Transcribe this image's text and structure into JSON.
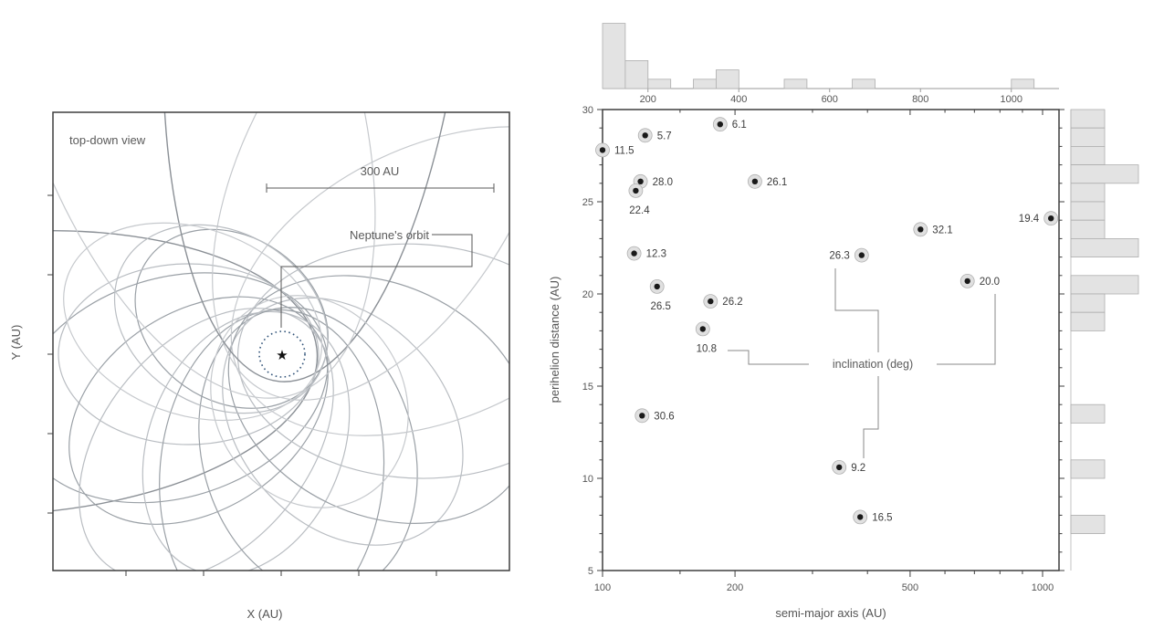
{
  "colors": {
    "frame": "#3f3f3f",
    "hist_fill": "#e3e3e3",
    "hist_stroke": "#adadad",
    "halo_fill": "#e0e0e0",
    "halo_stroke": "#b0b0b0",
    "dot": "#1a1a1a",
    "neptune_dash": "#33557a",
    "orbit_dark": "#8b9096",
    "orbit_mid": "#9aa0a6",
    "orbit_soft": "#b9bdc2",
    "orbit_light": "#c6c9cd"
  },
  "left_panel": {
    "title": "top-down view",
    "scale_bar_label": "300 AU",
    "scale_bar_au": 300,
    "neptune_annotation": "Neptune's orbit",
    "neptune_orbit_radius_au": 30,
    "xlabel": "X (AU)",
    "ylabel": "Y (AU)",
    "star_marker": "★"
  },
  "chart_data": [
    {
      "type": "diagram",
      "title": "top-down view of orbits around the Sun",
      "description": "Grey elliptical orbits sharing a focus at the star; dashed circle marks Neptune's orbit (30 AU); scale bar 300 AU",
      "orbits": [
        {
          "direction_deg": 176,
          "perihelion_au": 46,
          "aphelion_au": 744,
          "shade": "dark"
        },
        {
          "direction_deg": 163,
          "perihelion_au": 58,
          "aphelion_au": 360,
          "shade": "mid"
        },
        {
          "direction_deg": 215,
          "perihelion_au": 54,
          "aphelion_au": 216,
          "shade": "mid"
        },
        {
          "direction_deg": 180,
          "perihelion_au": 48,
          "aphelion_au": 294,
          "shade": "soft"
        },
        {
          "direction_deg": 146,
          "perihelion_au": 53,
          "aphelion_au": 318,
          "shade": "mid"
        },
        {
          "direction_deg": 130,
          "perihelion_au": 50,
          "aphelion_au": 360,
          "shade": "soft"
        },
        {
          "direction_deg": 95,
          "perihelion_au": 58,
          "aphelion_au": 372,
          "shade": "mid"
        },
        {
          "direction_deg": 112,
          "perihelion_au": 53,
          "aphelion_au": 306,
          "shade": "soft"
        },
        {
          "direction_deg": 75,
          "perihelion_au": 60,
          "aphelion_au": 324,
          "shade": "mid"
        },
        {
          "direction_deg": 48,
          "perihelion_au": 62,
          "aphelion_au": 300,
          "shade": "soft"
        },
        {
          "direction_deg": 25,
          "perihelion_au": 66,
          "aphelion_au": 348,
          "shade": "mid"
        },
        {
          "direction_deg": 3,
          "perihelion_au": 58,
          "aphelion_au": 408,
          "shade": "soft"
        },
        {
          "direction_deg": -25,
          "perihelion_au": 62,
          "aphelion_au": 516,
          "shade": "light"
        },
        {
          "direction_deg": -61,
          "perihelion_au": 54,
          "aphelion_au": 624,
          "shade": "light"
        },
        {
          "direction_deg": -85,
          "perihelion_au": 36,
          "aphelion_au": 1080,
          "shade": "dark"
        },
        {
          "direction_deg": -109,
          "perihelion_au": 55,
          "aphelion_au": 840,
          "shade": "light"
        },
        {
          "direction_deg": -150,
          "perihelion_au": 55,
          "aphelion_au": 240,
          "shade": "soft"
        },
        {
          "direction_deg": 60,
          "perihelion_au": 72,
          "aphelion_au": 216,
          "shade": "light"
        },
        {
          "direction_deg": 200,
          "perihelion_au": 50,
          "aphelion_au": 300,
          "shade": "light"
        }
      ]
    },
    {
      "type": "scatter",
      "xlabel": "semi-major axis (AU)",
      "ylabel": "perihelion distance (AU)",
      "x_scale": "log",
      "xlim": [
        100,
        1090
      ],
      "ylim": [
        5,
        30
      ],
      "x_ticks_labeled": [
        100,
        200,
        500,
        1000
      ],
      "x_minor_ticks": [
        150,
        300,
        400,
        600,
        700,
        800,
        900
      ],
      "y_ticks_labeled": [
        5,
        10,
        15,
        20,
        25,
        30
      ],
      "annotation": "inclination (deg)",
      "points": [
        {
          "a": 100,
          "q": 27.8,
          "inc": "11.5",
          "label_side": "right"
        },
        {
          "a": 125,
          "q": 28.6,
          "inc": "5.7",
          "label_side": "right"
        },
        {
          "a": 185,
          "q": 29.2,
          "inc": "6.1",
          "label_side": "right"
        },
        {
          "a": 122,
          "q": 26.1,
          "inc": "28.0",
          "label_side": "right"
        },
        {
          "a": 119,
          "q": 25.6,
          "inc": "22.4",
          "label_side": "below"
        },
        {
          "a": 222,
          "q": 26.1,
          "inc": "26.1",
          "label_side": "right"
        },
        {
          "a": 118,
          "q": 22.2,
          "inc": "12.3",
          "label_side": "right"
        },
        {
          "a": 133,
          "q": 20.4,
          "inc": "26.5",
          "label_side": "below"
        },
        {
          "a": 176,
          "q": 19.6,
          "inc": "26.2",
          "label_side": "right"
        },
        {
          "a": 169,
          "q": 18.1,
          "inc": "10.8",
          "label_side": "below"
        },
        {
          "a": 388,
          "q": 22.1,
          "inc": "26.3",
          "label_side": "left"
        },
        {
          "a": 528,
          "q": 23.5,
          "inc": "32.1",
          "label_side": "right"
        },
        {
          "a": 1045,
          "q": 24.1,
          "inc": "19.4",
          "label_side": "left"
        },
        {
          "a": 675,
          "q": 20.7,
          "inc": "20.0",
          "label_side": "right"
        },
        {
          "a": 123,
          "q": 13.4,
          "inc": "30.6",
          "label_side": "right"
        },
        {
          "a": 345,
          "q": 10.6,
          "inc": "9.2",
          "label_side": "right"
        },
        {
          "a": 385,
          "q": 7.9,
          "inc": "16.5",
          "label_side": "right"
        }
      ],
      "top_histogram": {
        "axis": "semi-major axis (AU), linear",
        "axis_ticks": [
          200,
          400,
          600,
          800,
          1000
        ],
        "bin_width_au": 50,
        "bins": [
          {
            "start": 100,
            "count": 7
          },
          {
            "start": 150,
            "count": 3
          },
          {
            "start": 200,
            "count": 1
          },
          {
            "start": 300,
            "count": 1
          },
          {
            "start": 350,
            "count": 2
          },
          {
            "start": 500,
            "count": 1
          },
          {
            "start": 650,
            "count": 1
          },
          {
            "start": 1000,
            "count": 1
          }
        ]
      },
      "right_histogram": {
        "axis": "perihelion distance (AU)",
        "bin_width_au": 1,
        "bins": [
          {
            "start": 29,
            "count": 1
          },
          {
            "start": 28,
            "count": 1
          },
          {
            "start": 27,
            "count": 1
          },
          {
            "start": 26,
            "count": 2
          },
          {
            "start": 25,
            "count": 1
          },
          {
            "start": 24,
            "count": 1
          },
          {
            "start": 23,
            "count": 1
          },
          {
            "start": 22,
            "count": 2
          },
          {
            "start": 20,
            "count": 2
          },
          {
            "start": 19,
            "count": 1
          },
          {
            "start": 18,
            "count": 1
          },
          {
            "start": 13,
            "count": 1
          },
          {
            "start": 10,
            "count": 1
          },
          {
            "start": 7,
            "count": 1
          }
        ]
      }
    }
  ]
}
